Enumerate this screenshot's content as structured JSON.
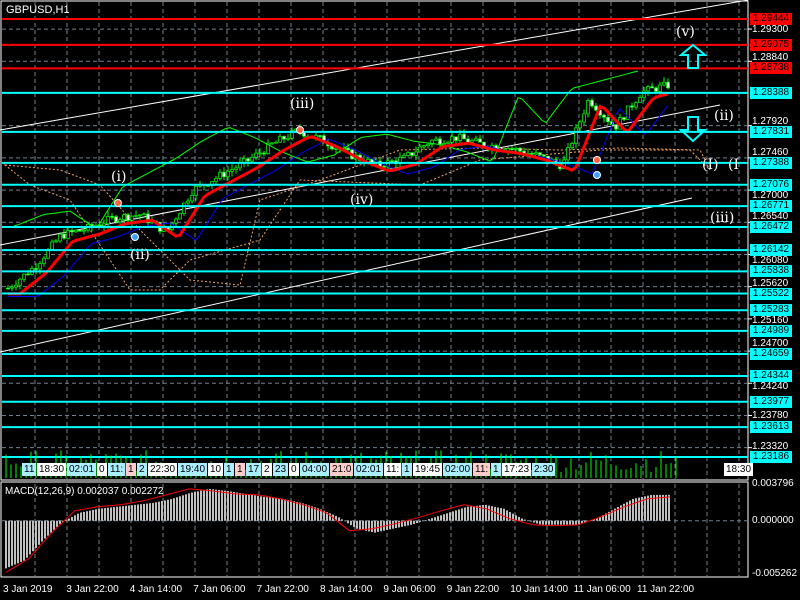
{
  "symbol_title": "GBPUSD,H1",
  "macd_label": "MACD(12,26,9) 0.002037 0.002272",
  "colors": {
    "resistance": "#ff0000",
    "support": "#00ffff",
    "candle": "#00ff00",
    "ma_fast": "#ff0000",
    "ma_slow": "#0000ff",
    "cloud": "#f4a460",
    "grid": "#708090",
    "macd_hist": "#c0c0c0",
    "macd_signal": "#ff0000"
  },
  "price_levels": [
    {
      "value": "1.29444",
      "type": "resistance"
    },
    {
      "value": "1.29075",
      "type": "resistance"
    },
    {
      "value": "1.28738",
      "type": "resistance"
    },
    {
      "value": "1.28388",
      "type": "support"
    },
    {
      "value": "1.27831",
      "type": "support"
    },
    {
      "value": "1.27388",
      "type": "support"
    },
    {
      "value": "1.27076",
      "type": "support"
    },
    {
      "value": "1.26771",
      "type": "support"
    },
    {
      "value": "1.26472",
      "type": "support"
    },
    {
      "value": "1.26142",
      "type": "support"
    },
    {
      "value": "1.25838",
      "type": "support"
    },
    {
      "value": "1.25522",
      "type": "support"
    },
    {
      "value": "1.25283",
      "type": "support"
    },
    {
      "value": "1.24989",
      "type": "support"
    },
    {
      "value": "1.24659",
      "type": "support"
    },
    {
      "value": "1.24344",
      "type": "support"
    },
    {
      "value": "1.23977",
      "type": "support"
    },
    {
      "value": "1.23613",
      "type": "support"
    },
    {
      "value": "1.23186",
      "type": "support"
    }
  ],
  "price_axis": [
    "1.29300",
    "1.28840",
    "1.27920",
    "1.27460",
    "1.27000",
    "1.26540",
    "1.26080",
    "1.25620",
    "1.25160",
    "1.24700",
    "1.24240",
    "1.23780",
    "1.23320"
  ],
  "macd_axis": [
    "0.003796",
    "0.000000",
    "-0.005262"
  ],
  "time_axis": [
    "3 Jan 2019",
    "3 Jan 22:00",
    "4 Jan 14:00",
    "7 Jan 06:00",
    "7 Jan 22:00",
    "8 Jan 14:00",
    "9 Jan 06:00",
    "9 Jan 22:00",
    "10 Jan 14:00",
    "11 Jan 06:00",
    "11 Jan 22:00"
  ],
  "wave_labels": [
    "(v)",
    "(iii)",
    "(ii)",
    "(i)",
    "(ii)",
    "(iv)",
    "(I)",
    "(I",
    "(iii)"
  ],
  "time_tags": [
    "11",
    "18:30",
    "02:01",
    "0",
    "11:",
    "1",
    "2",
    "22:30",
    "19:40",
    "10",
    "1",
    "1",
    "17",
    "2",
    "23",
    "0",
    "04:00",
    "21:0",
    "02:01",
    "11:",
    "1",
    "19:45",
    "02:00",
    "11:",
    "1",
    "17:23",
    "2:30",
    "18:30"
  ],
  "chart_data": {
    "type": "candlestick",
    "symbol": "GBPUSD",
    "timeframe": "H1",
    "x": [
      "3 Jan 2019",
      "3 Jan 22:00",
      "4 Jan 14:00",
      "7 Jan 06:00",
      "7 Jan 22:00",
      "8 Jan 14:00",
      "9 Jan 06:00",
      "9 Jan 22:00",
      "10 Jan 14:00",
      "11 Jan 06:00",
      "11 Jan 22:00"
    ],
    "close_path": [
      1.256,
      1.259,
      1.2635,
      1.2645,
      1.266,
      1.2665,
      1.264,
      1.27,
      1.272,
      1.274,
      1.2765,
      1.2785,
      1.277,
      1.275,
      1.2735,
      1.2745,
      1.277,
      1.2775,
      1.2765,
      1.276,
      1.275,
      1.2735,
      1.283,
      1.279,
      1.284,
      1.285
    ],
    "ylim": [
      1.2295,
      1.297
    ],
    "macd_hist": [
      -0.0048,
      -0.004,
      -0.002,
      -0.0002,
      0.0008,
      0.0012,
      0.0014,
      0.0016,
      0.0018,
      0.0022,
      0.0028,
      0.0032,
      0.003,
      0.0027,
      0.0024,
      0.0022,
      0.0018,
      0.0012,
      0.0004,
      -0.0008,
      -0.0012,
      -0.0008,
      -0.0004,
      0.0002,
      0.0008,
      0.0014,
      0.0016,
      0.0012,
      0.0002,
      -0.0004,
      -0.0004,
      -0.0004,
      0.0002,
      0.0012,
      0.0022,
      0.0026,
      0.0026
    ],
    "macd_signal": [
      -0.0052,
      -0.0038,
      -0.0012,
      0.001,
      0.0014,
      0.0016,
      0.002,
      0.0026,
      0.0032,
      0.003,
      0.0027,
      0.0026,
      0.0022,
      0.0016,
      0.0008,
      -0.001,
      -0.0008,
      -0.0003,
      0.0003,
      0.001,
      0.0016,
      0.0012,
      0.0002,
      -0.0004,
      -0.0005,
      -0.0004,
      0.0004,
      0.0014,
      0.0022,
      0.0024
    ],
    "macd_range": [
      -0.005262,
      0.003796
    ]
  }
}
